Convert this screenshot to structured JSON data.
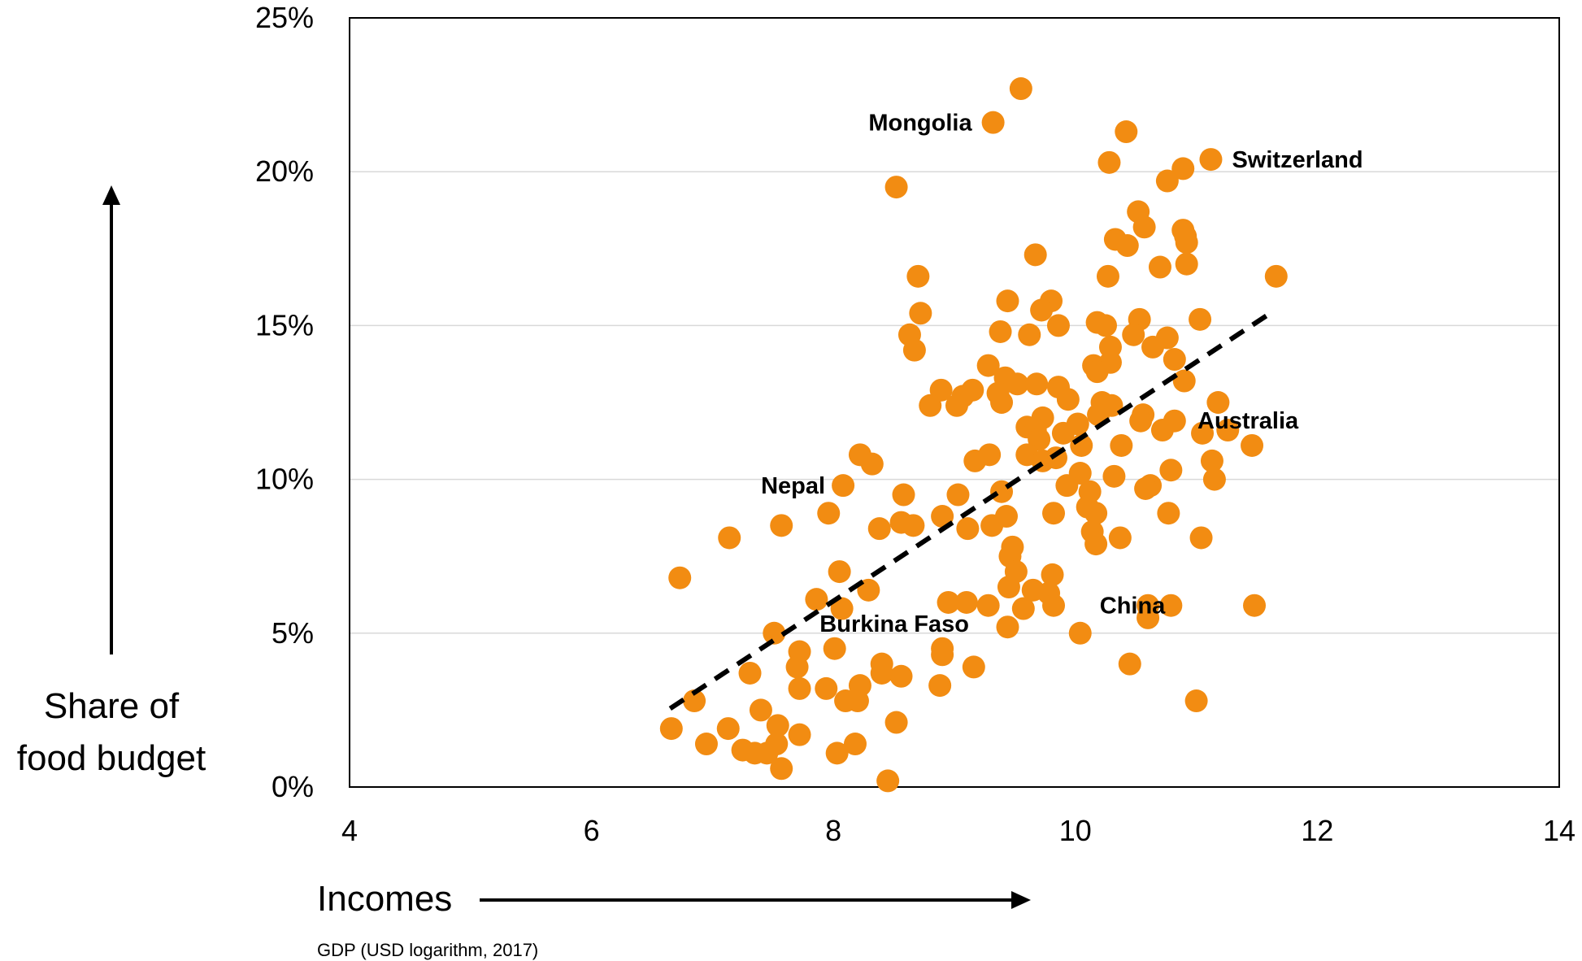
{
  "chart_data": {
    "type": "scatter",
    "title": "",
    "xlabel": "Incomes",
    "ylabel": "Share of food budget",
    "ylabel_lines": [
      "Share of",
      "food budget"
    ],
    "x_note": "GDP (USD logarithm, 2017)",
    "xlim": [
      4,
      14
    ],
    "ylim": [
      0,
      0.25
    ],
    "x_ticks": [
      4,
      6,
      8,
      10,
      12,
      14
    ],
    "x_tick_labels": [
      "4",
      "6",
      "8",
      "10",
      "12",
      "14"
    ],
    "y_ticks": [
      0,
      0.05,
      0.1,
      0.15,
      0.2,
      0.25
    ],
    "y_tick_labels": [
      "0%",
      "5%",
      "10%",
      "15%",
      "20%",
      "25%"
    ],
    "grid": "horizontal",
    "marker_color": "#f28c12",
    "trend_color": "#000000",
    "trendline": {
      "x": [
        6.65,
        11.65
      ],
      "y": [
        0.0255,
        0.155
      ]
    },
    "points": [
      [
        9.55,
        0.227
      ],
      [
        9.32,
        0.216
      ],
      [
        10.42,
        0.213
      ],
      [
        11.12,
        0.204
      ],
      [
        10.28,
        0.203
      ],
      [
        10.89,
        0.201
      ],
      [
        10.76,
        0.197
      ],
      [
        8.52,
        0.195
      ],
      [
        10.52,
        0.187
      ],
      [
        10.57,
        0.182
      ],
      [
        10.89,
        0.181
      ],
      [
        10.91,
        0.179
      ],
      [
        10.92,
        0.177
      ],
      [
        10.33,
        0.178
      ],
      [
        10.43,
        0.176
      ],
      [
        9.67,
        0.173
      ],
      [
        10.92,
        0.17
      ],
      [
        10.7,
        0.169
      ],
      [
        10.27,
        0.166
      ],
      [
        8.7,
        0.166
      ],
      [
        11.66,
        0.166
      ],
      [
        9.44,
        0.158
      ],
      [
        9.8,
        0.158
      ],
      [
        9.72,
        0.155
      ],
      [
        8.72,
        0.154
      ],
      [
        10.53,
        0.152
      ],
      [
        10.18,
        0.151
      ],
      [
        10.25,
        0.15
      ],
      [
        11.03,
        0.152
      ],
      [
        9.86,
        0.15
      ],
      [
        8.63,
        0.147
      ],
      [
        9.38,
        0.148
      ],
      [
        9.62,
        0.147
      ],
      [
        10.48,
        0.147
      ],
      [
        10.76,
        0.146
      ],
      [
        10.29,
        0.143
      ],
      [
        10.64,
        0.143
      ],
      [
        8.67,
        0.142
      ],
      [
        10.82,
        0.139
      ],
      [
        10.15,
        0.137
      ],
      [
        10.29,
        0.138
      ],
      [
        9.28,
        0.137
      ],
      [
        10.18,
        0.135
      ],
      [
        9.42,
        0.133
      ],
      [
        9.52,
        0.131
      ],
      [
        9.68,
        0.131
      ],
      [
        9.86,
        0.13
      ],
      [
        8.89,
        0.129
      ],
      [
        9.15,
        0.129
      ],
      [
        10.9,
        0.132
      ],
      [
        9.36,
        0.128
      ],
      [
        9.07,
        0.127
      ],
      [
        9.94,
        0.126
      ],
      [
        8.8,
        0.124
      ],
      [
        9.02,
        0.124
      ],
      [
        9.39,
        0.125
      ],
      [
        10.22,
        0.125
      ],
      [
        10.3,
        0.124
      ],
      [
        11.18,
        0.125
      ],
      [
        9.73,
        0.12
      ],
      [
        10.02,
        0.118
      ],
      [
        10.19,
        0.121
      ],
      [
        10.56,
        0.121
      ],
      [
        10.82,
        0.119
      ],
      [
        9.6,
        0.117
      ],
      [
        9.67,
        0.116
      ],
      [
        10.54,
        0.119
      ],
      [
        11.05,
        0.115
      ],
      [
        11.26,
        0.116
      ],
      [
        9.9,
        0.115
      ],
      [
        10.72,
        0.116
      ],
      [
        9.7,
        0.113
      ],
      [
        10.05,
        0.111
      ],
      [
        10.38,
        0.111
      ],
      [
        11.46,
        0.111
      ],
      [
        8.22,
        0.108
      ],
      [
        9.29,
        0.108
      ],
      [
        9.6,
        0.108
      ],
      [
        9.73,
        0.106
      ],
      [
        9.84,
        0.107
      ],
      [
        8.32,
        0.105
      ],
      [
        9.17,
        0.106
      ],
      [
        10.04,
        0.102
      ],
      [
        10.32,
        0.101
      ],
      [
        10.79,
        0.103
      ],
      [
        11.13,
        0.106
      ],
      [
        8.08,
        0.098
      ],
      [
        9.93,
        0.098
      ],
      [
        10.62,
        0.098
      ],
      [
        10.58,
        0.097
      ],
      [
        11.15,
        0.1
      ],
      [
        8.58,
        0.095
      ],
      [
        9.03,
        0.095
      ],
      [
        9.39,
        0.096
      ],
      [
        10.12,
        0.096
      ],
      [
        7.96,
        0.089
      ],
      [
        8.9,
        0.088
      ],
      [
        9.82,
        0.089
      ],
      [
        10.1,
        0.091
      ],
      [
        10.17,
        0.089
      ],
      [
        10.77,
        0.089
      ],
      [
        7.57,
        0.085
      ],
      [
        8.56,
        0.086
      ],
      [
        8.66,
        0.085
      ],
      [
        8.38,
        0.084
      ],
      [
        9.11,
        0.084
      ],
      [
        9.31,
        0.085
      ],
      [
        9.43,
        0.088
      ],
      [
        10.14,
        0.083
      ],
      [
        10.37,
        0.081
      ],
      [
        11.04,
        0.081
      ],
      [
        7.14,
        0.081
      ],
      [
        10.17,
        0.079
      ],
      [
        9.48,
        0.078
      ],
      [
        9.46,
        0.075
      ],
      [
        8.05,
        0.07
      ],
      [
        9.51,
        0.07
      ],
      [
        9.81,
        0.069
      ],
      [
        6.73,
        0.068
      ],
      [
        8.29,
        0.064
      ],
      [
        9.45,
        0.065
      ],
      [
        9.65,
        0.064
      ],
      [
        9.78,
        0.063
      ],
      [
        7.86,
        0.061
      ],
      [
        8.07,
        0.058
      ],
      [
        8.95,
        0.06
      ],
      [
        9.1,
        0.06
      ],
      [
        9.28,
        0.059
      ],
      [
        9.57,
        0.058
      ],
      [
        9.82,
        0.059
      ],
      [
        10.6,
        0.059
      ],
      [
        10.79,
        0.059
      ],
      [
        11.48,
        0.059
      ],
      [
        10.6,
        0.055
      ],
      [
        9.44,
        0.052
      ],
      [
        10.04,
        0.05
      ],
      [
        7.51,
        0.05
      ],
      [
        7.72,
        0.044
      ],
      [
        8.01,
        0.045
      ],
      [
        8.9,
        0.045
      ],
      [
        8.9,
        0.043
      ],
      [
        7.7,
        0.039
      ],
      [
        8.4,
        0.04
      ],
      [
        8.4,
        0.037
      ],
      [
        8.56,
        0.036
      ],
      [
        7.31,
        0.037
      ],
      [
        9.16,
        0.039
      ],
      [
        10.45,
        0.04
      ],
      [
        7.72,
        0.032
      ],
      [
        7.94,
        0.032
      ],
      [
        8.22,
        0.033
      ],
      [
        8.88,
        0.033
      ],
      [
        6.85,
        0.028
      ],
      [
        8.1,
        0.028
      ],
      [
        8.2,
        0.028
      ],
      [
        11.0,
        0.028
      ],
      [
        7.4,
        0.025
      ],
      [
        7.54,
        0.02
      ],
      [
        8.52,
        0.021
      ],
      [
        6.66,
        0.019
      ],
      [
        7.13,
        0.019
      ],
      [
        7.72,
        0.017
      ],
      [
        6.95,
        0.014
      ],
      [
        7.25,
        0.012
      ],
      [
        7.35,
        0.011
      ],
      [
        7.45,
        0.011
      ],
      [
        7.53,
        0.014
      ],
      [
        8.03,
        0.011
      ],
      [
        8.18,
        0.014
      ],
      [
        7.57,
        0.006
      ],
      [
        8.45,
        0.002
      ]
    ],
    "annotations": [
      {
        "text": "Mongolia",
        "x": 9.32,
        "y": 0.216
      },
      {
        "text": "Switzerland",
        "x": 11.12,
        "y": 0.204
      },
      {
        "text": "Australia",
        "x": 11.05,
        "y": 0.115
      },
      {
        "text": "Nepal",
        "x": 8.08,
        "y": 0.098
      },
      {
        "text": "China",
        "x": 10.04,
        "y": 0.059
      },
      {
        "text": "Burkina Faso",
        "x": 7.51,
        "y": 0.05
      }
    ]
  }
}
